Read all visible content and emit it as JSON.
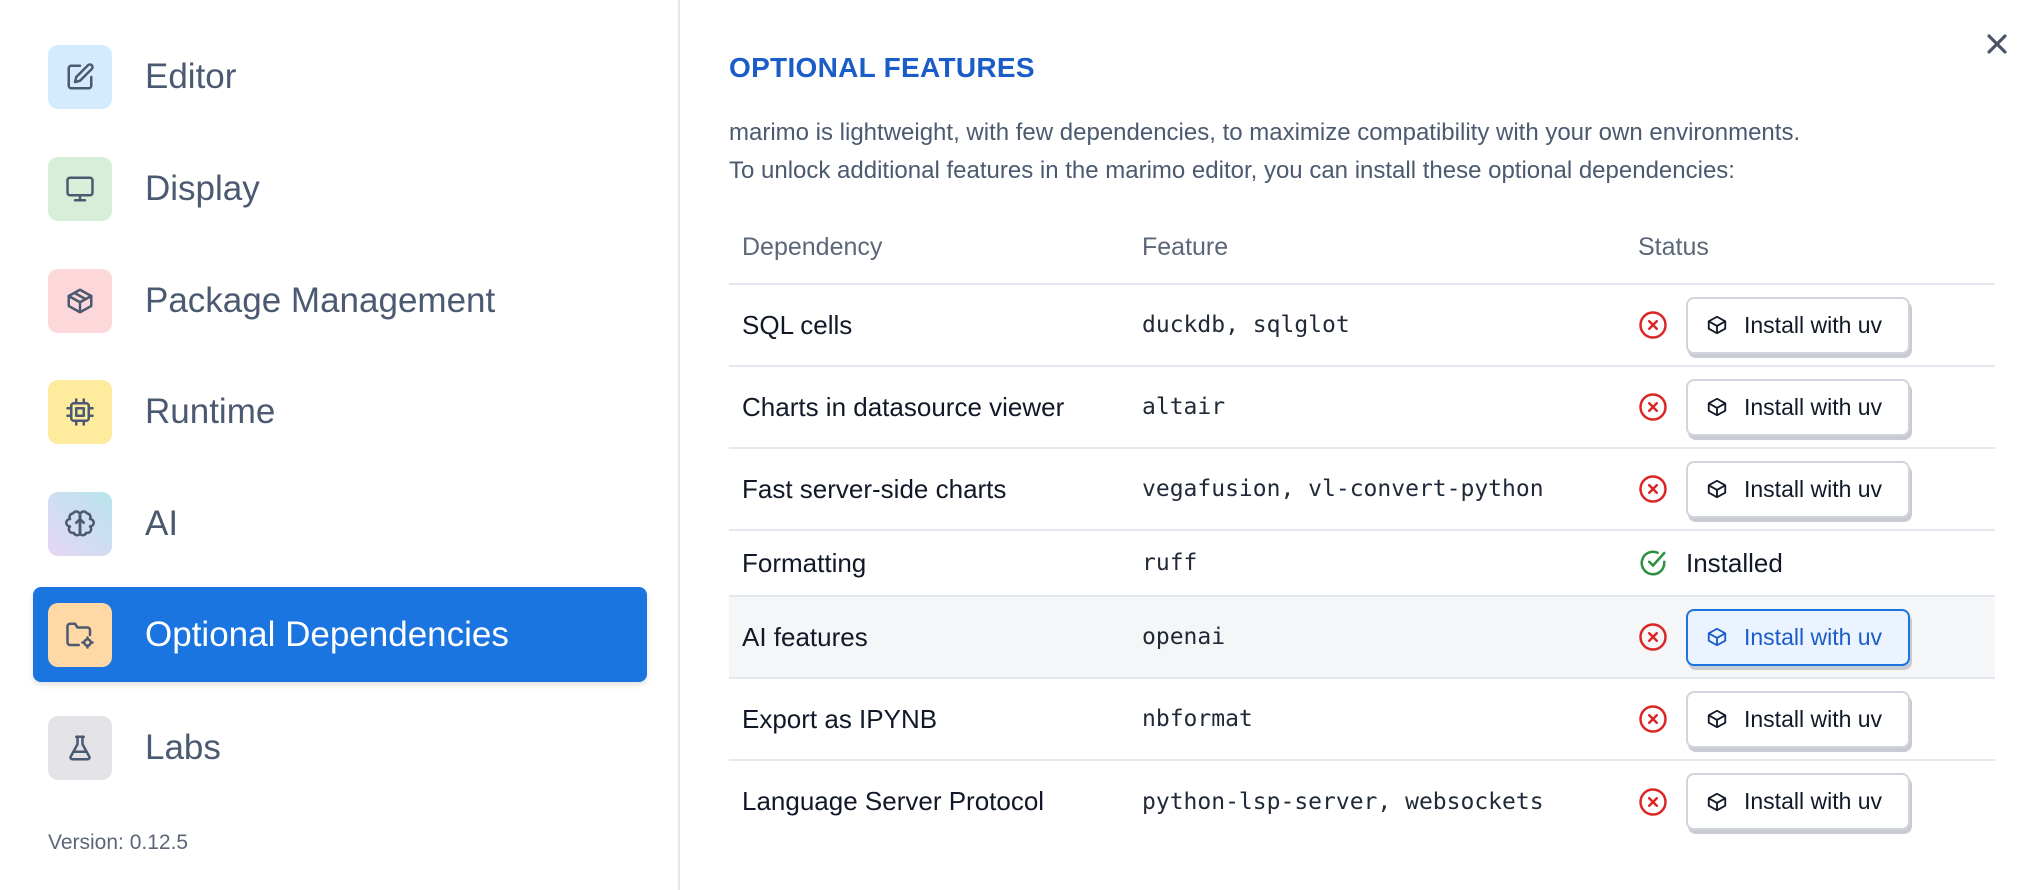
{
  "sidebar": {
    "items": [
      {
        "label": "Editor",
        "icon": "pencil-square-icon",
        "bg": "#d3ebfd"
      },
      {
        "label": "Display",
        "icon": "monitor-icon",
        "bg": "#d7eed8"
      },
      {
        "label": "Package Management",
        "icon": "package-icon",
        "bg": "#fdd8da"
      },
      {
        "label": "Runtime",
        "icon": "cpu-icon",
        "bg": "#feeb9e"
      },
      {
        "label": "AI",
        "icon": "brain-icon",
        "bg": "#cfe1f4"
      },
      {
        "label": "Optional Dependencies",
        "icon": "folder-cog-icon",
        "bg": "#fed9a6",
        "active": true
      },
      {
        "label": "Labs",
        "icon": "flask-icon",
        "bg": "#e4e4e8"
      }
    ],
    "version": "Version: 0.12.5"
  },
  "main": {
    "title": "OPTIONAL FEATURES",
    "description": [
      "marimo is lightweight, with few dependencies, to maximize compatibility with your own environments.",
      "To unlock additional features in the marimo editor, you can install these optional dependencies:"
    ],
    "table": {
      "headers": [
        "Dependency",
        "Feature",
        "Status"
      ],
      "rows": [
        {
          "dependency": "SQL cells",
          "feature": "duckdb, sqlglot",
          "status": "missing",
          "action": "Install with uv"
        },
        {
          "dependency": "Charts in datasource viewer",
          "feature": "altair",
          "status": "missing",
          "action": "Install with uv"
        },
        {
          "dependency": "Fast server-side charts",
          "feature": "vegafusion, vl-convert-python",
          "status": "missing",
          "action": "Install with uv"
        },
        {
          "dependency": "Formatting",
          "feature": "ruff",
          "status": "installed",
          "status_text": "Installed"
        },
        {
          "dependency": "AI features",
          "feature": "openai",
          "status": "missing",
          "action": "Install with uv",
          "hovered": true
        },
        {
          "dependency": "Export as IPYNB",
          "feature": "nbformat",
          "status": "missing",
          "action": "Install with uv"
        },
        {
          "dependency": "Language Server Protocol",
          "feature": "python-lsp-server, websockets",
          "status": "missing",
          "action": "Install with uv"
        }
      ]
    }
  },
  "colors": {
    "accent": "#1a75e0",
    "title": "#1a5cc8",
    "error": "#dc2626",
    "success": "#2f8f3f"
  }
}
